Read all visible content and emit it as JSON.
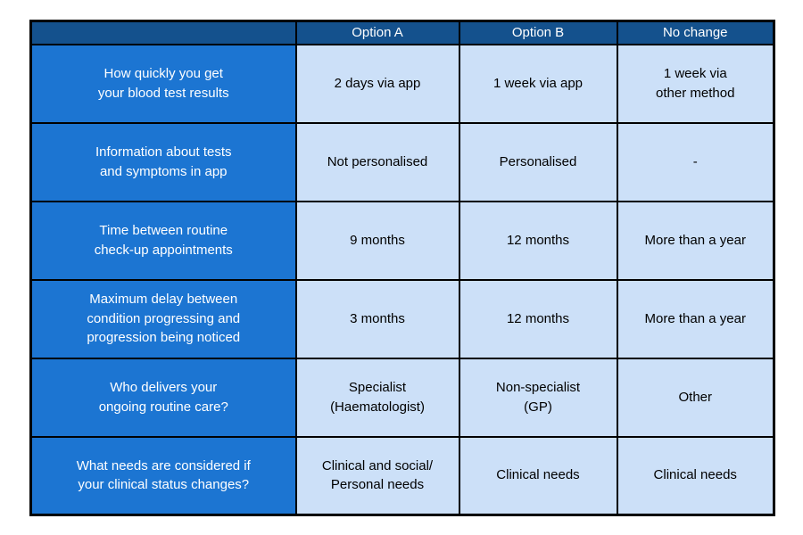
{
  "colors": {
    "header_bg": "#14518D",
    "label_bg": "#1C75D2",
    "cell_bg": "#CCE0F8",
    "border": "#000000",
    "header_text": "#FFFFFF",
    "cell_text": "#000000"
  },
  "table": {
    "columns": {
      "option_a": "Option A",
      "option_b": "Option B",
      "no_change": "No change"
    },
    "rows": [
      {
        "label": "How quickly you get\nyour blood test results",
        "option_a": "2 days via app",
        "option_b": "1 week via app",
        "no_change": "1 week via\nother method"
      },
      {
        "label": "Information about tests\nand symptoms in app",
        "option_a": "Not personalised",
        "option_b": "Personalised",
        "no_change": "-"
      },
      {
        "label": "Time between routine\ncheck-up appointments",
        "option_a": "9 months",
        "option_b": "12 months",
        "no_change": "More than a year"
      },
      {
        "label": "Maximum delay between\ncondition progressing and\nprogression being noticed",
        "option_a": "3 months",
        "option_b": "12 months",
        "no_change": "More than a year"
      },
      {
        "label": "Who delivers your\nongoing routine care?",
        "option_a": "Specialist\n(Haematologist)",
        "option_b": "Non-specialist\n(GP)",
        "no_change": "Other"
      },
      {
        "label": "What needs are considered if\nyour clinical status changes?",
        "option_a": "Clinical and social/\nPersonal needs",
        "option_b": "Clinical needs",
        "no_change": "Clinical needs"
      }
    ]
  }
}
